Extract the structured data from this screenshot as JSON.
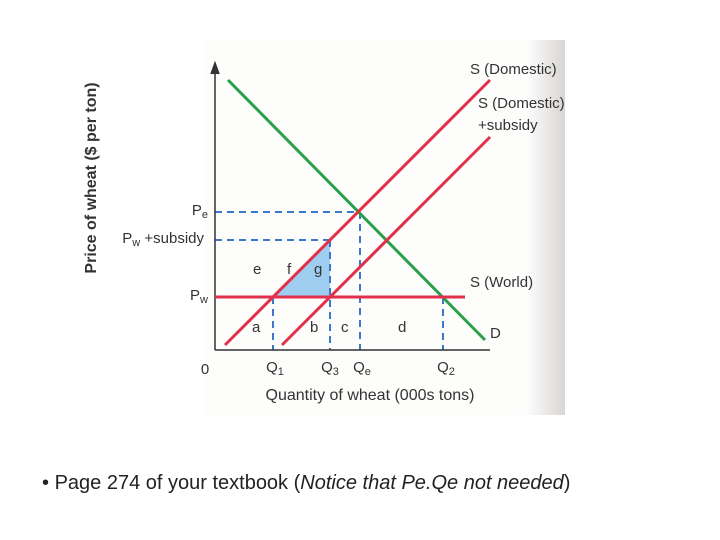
{
  "diagram": {
    "y_axis_label": "Price of wheat ($ per ton)",
    "x_axis_label": "Quantity of wheat (000s tons)",
    "origin": "0",
    "price_labels": {
      "pe": {
        "main": "P",
        "sub": "e"
      },
      "pw_subsidy": {
        "main": "P",
        "sub": "w",
        "rest": " +subsidy"
      },
      "pw": {
        "main": "P",
        "sub": "w"
      }
    },
    "quantity_labels": {
      "q1": {
        "main": "Q",
        "sub": "1"
      },
      "q3": {
        "main": "Q",
        "sub": "3"
      },
      "qe": {
        "main": "Q",
        "sub": "e"
      },
      "q2": {
        "main": "Q",
        "sub": "2"
      }
    },
    "curve_labels": {
      "s_domestic": "S (Domestic)",
      "s_domestic_subsidy_1": "S (Domestic)",
      "s_domestic_subsidy_2": "+subsidy",
      "s_world": "S (World)",
      "demand": "D"
    },
    "areas": {
      "a": "a",
      "b": "b",
      "c": "c",
      "d": "d",
      "e": "e",
      "f": "f",
      "g": "g"
    }
  },
  "bullet": {
    "text": "Page 274 of your textbook (",
    "italic": "Notice that Pe.Qe not needed",
    "end": ")"
  }
}
